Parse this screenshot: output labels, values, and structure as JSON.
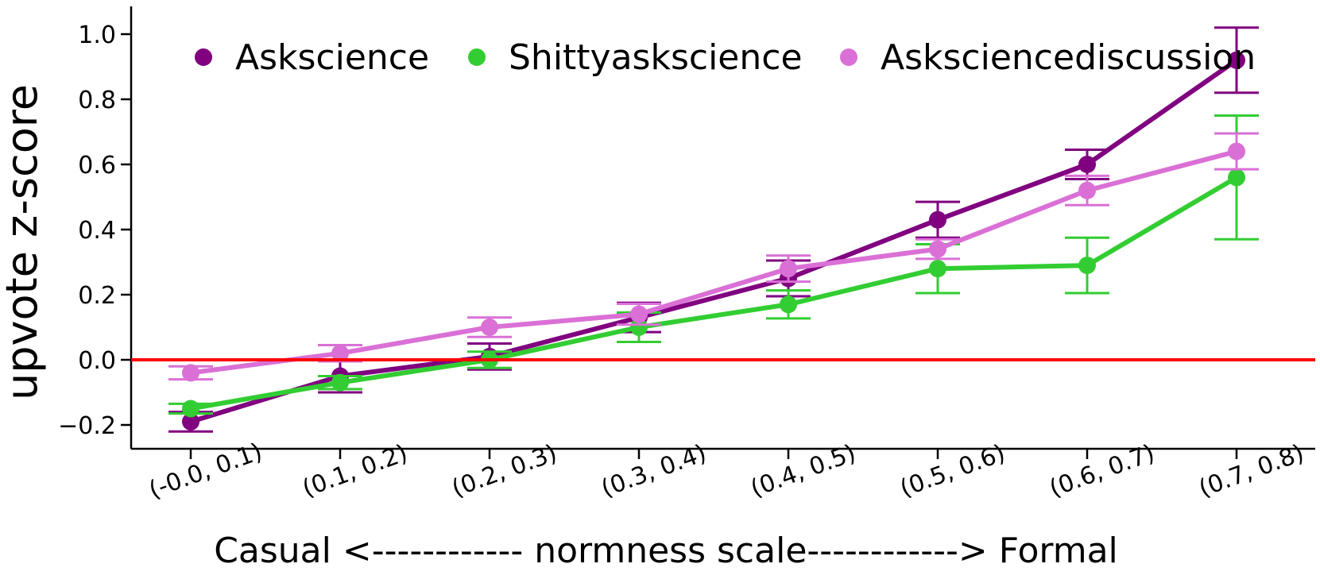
{
  "chart_data": {
    "type": "line",
    "title": "",
    "ylabel": "upvote z-score",
    "xlabel": "Casual <------------ normness scale------------> Formal",
    "categories": [
      "(-0.0, 0.1)",
      "(0.1, 0.2)",
      "(0.2, 0.3)",
      "(0.3, 0.4)",
      "(0.4, 0.5)",
      "(0.5, 0.6)",
      "(0.6, 0.7)",
      "(0.7, 0.8)"
    ],
    "yticks": [
      -0.2,
      0.0,
      0.2,
      0.4,
      0.6,
      0.8,
      1.0
    ],
    "ytick_labels": [
      "−0.2",
      "0.0",
      "0.2",
      "0.4",
      "0.6",
      "0.8",
      "1.0"
    ],
    "ylim": [
      -0.27,
      1.08
    ],
    "grid": false,
    "legend_position": "top-inside-horizontal",
    "background_color": "#ffffff",
    "axis_color": "#000000",
    "reference_line": {
      "y": 0.0,
      "color": "#ff0000"
    },
    "series": [
      {
        "name": "Askscience",
        "color": "#800080",
        "values": [
          -0.19,
          -0.05,
          0.01,
          0.13,
          0.25,
          0.43,
          0.6,
          0.92
        ],
        "errors": [
          0.03,
          0.05,
          0.04,
          0.045,
          0.055,
          0.055,
          0.045,
          0.1
        ]
      },
      {
        "name": "Shittyaskscience",
        "color": "#32CD32",
        "values": [
          -0.15,
          -0.07,
          0.0,
          0.1,
          0.17,
          0.28,
          0.29,
          0.56
        ],
        "errors": [
          0.015,
          0.02,
          0.025,
          0.045,
          0.043,
          0.075,
          0.085,
          0.19
        ]
      },
      {
        "name": "Asksciencediscussion",
        "color": "#DA70D6",
        "values": [
          -0.04,
          0.02,
          0.1,
          0.14,
          0.28,
          0.34,
          0.52,
          0.64
        ],
        "errors": [
          0.02,
          0.025,
          0.03,
          0.032,
          0.04,
          0.03,
          0.045,
          0.055
        ]
      }
    ]
  }
}
